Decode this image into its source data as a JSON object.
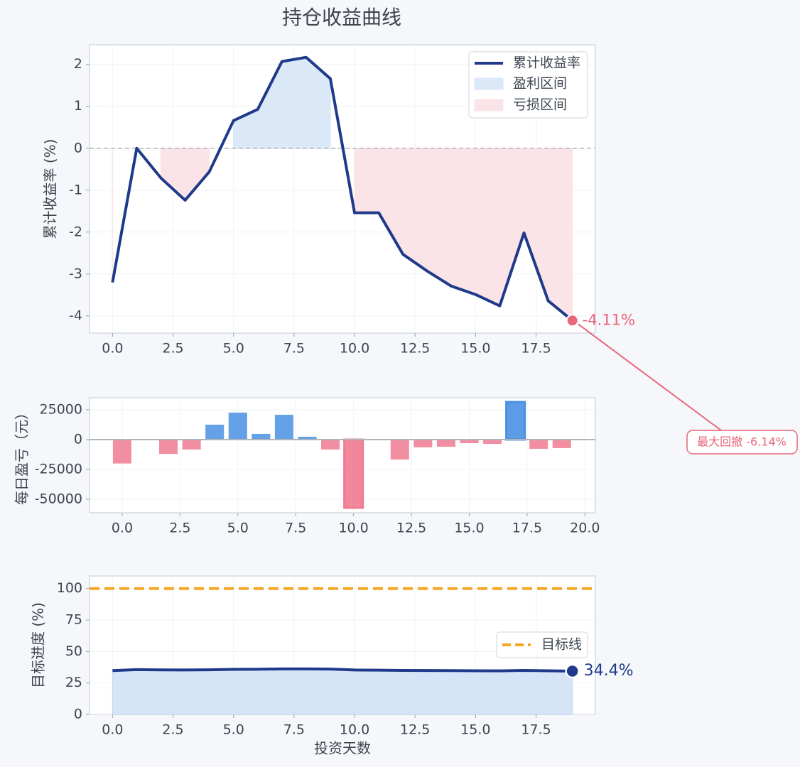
{
  "title": "持仓收益曲线",
  "chart_data": [
    {
      "type": "line",
      "ylabel": "累计收益率 (%)",
      "x": [
        0,
        1,
        2,
        3,
        4,
        5,
        6,
        7,
        8,
        9,
        10,
        11,
        12,
        13,
        14,
        15,
        16,
        17,
        18,
        19
      ],
      "series": [
        {
          "name": "累计收益率",
          "color": "#1f3a8a",
          "values": [
            -3.2,
            0.0,
            -0.71,
            -1.24,
            -0.56,
            0.66,
            0.93,
            2.07,
            2.17,
            1.66,
            -1.54,
            -1.54,
            -2.53,
            -2.93,
            -3.29,
            -3.49,
            -3.76,
            -2.02,
            -3.64,
            -4.11
          ]
        }
      ],
      "fills": [
        {
          "name": "盈利区间",
          "color": "#dbe8f8",
          "where": "above"
        },
        {
          "name": "亏损区间",
          "color": "#fbe4e7",
          "where": "below"
        }
      ],
      "hline": {
        "value": 0,
        "color": "#b0b4ba"
      },
      "end_label": "-4.11%",
      "end_color": "#e8677a",
      "callout": "最大回撤 -6.14%",
      "xlim": [
        -0.95,
        19.95
      ],
      "xticks": [
        {
          "value": 0,
          "label": "0.0"
        },
        {
          "value": 2.5,
          "label": "2.5"
        },
        {
          "value": 5,
          "label": "5.0"
        },
        {
          "value": 7.5,
          "label": "7.5"
        },
        {
          "value": 10,
          "label": "10.0"
        },
        {
          "value": 12.5,
          "label": "12.5"
        },
        {
          "value": 15,
          "label": "15.0"
        },
        {
          "value": 17.5,
          "label": "17.5"
        }
      ],
      "ylim": [
        -4.41,
        2.47
      ],
      "yticks": [
        -4,
        -3,
        -2,
        -1,
        0,
        1,
        2
      ],
      "grid": true,
      "legend": "upper right"
    },
    {
      "type": "bar",
      "ylabel": "每日盈亏（元）",
      "x": [
        0,
        1,
        2,
        3,
        4,
        5,
        6,
        7,
        8,
        9,
        10,
        11,
        12,
        13,
        14,
        15,
        16,
        17,
        18,
        19
      ],
      "values": [
        -20000,
        0,
        -12000,
        -8300,
        12500,
        22600,
        4800,
        20800,
        2400,
        -8300,
        -57100,
        0,
        -16700,
        -6500,
        -6000,
        -3000,
        -3600,
        31500,
        -7700,
        -7100
      ],
      "colors": {
        "positive": "#4a90e2",
        "negative": "#f07a90"
      },
      "xlim": [
        -1.41,
        20.45
      ],
      "xticks": [
        {
          "value": 0,
          "label": "0.0"
        },
        {
          "value": 2.5,
          "label": "2.5"
        },
        {
          "value": 5,
          "label": "5.0"
        },
        {
          "value": 7.5,
          "label": "7.5"
        },
        {
          "value": 10,
          "label": "10.0"
        },
        {
          "value": 12.5,
          "label": "12.5"
        },
        {
          "value": 15,
          "label": "15.0"
        },
        {
          "value": 17.5,
          "label": "17.5"
        },
        {
          "value": 20,
          "label": "20.0"
        }
      ],
      "ylim": [
        -61300,
        35100
      ],
      "yticks": [
        -50000,
        -25000,
        0,
        25000
      ],
      "grid": true
    },
    {
      "type": "area",
      "ylabel": "目标进度 (%)",
      "xlabel": "投资天数",
      "x": [
        0,
        1,
        2,
        3,
        4,
        5,
        6,
        7,
        8,
        9,
        10,
        11,
        12,
        13,
        14,
        15,
        16,
        17,
        18,
        19
      ],
      "values": [
        34.8,
        35.6,
        35.4,
        35.3,
        35.5,
        35.8,
        35.9,
        36.2,
        36.2,
        36.0,
        35.3,
        35.2,
        35.0,
        34.9,
        34.8,
        34.7,
        34.6,
        35.0,
        34.7,
        34.4
      ],
      "color": "#1f3a8a",
      "fill": "#d6e4f8",
      "target": {
        "name": "目标线",
        "value": 100,
        "color": "#f5a623"
      },
      "end_label": "34.4%",
      "xlim": [
        -0.95,
        19.95
      ],
      "xticks": [
        {
          "value": 0,
          "label": "0.0"
        },
        {
          "value": 2.5,
          "label": "2.5"
        },
        {
          "value": 5,
          "label": "5.0"
        },
        {
          "value": 7.5,
          "label": "7.5"
        },
        {
          "value": 10,
          "label": "10.0"
        },
        {
          "value": 12.5,
          "label": "12.5"
        },
        {
          "value": 15,
          "label": "15.0"
        },
        {
          "value": 17.5,
          "label": "17.5"
        }
      ],
      "ylim": [
        0,
        110
      ],
      "yticks": [
        0,
        25,
        50,
        75,
        100
      ],
      "grid": true,
      "legend": "center right"
    }
  ]
}
